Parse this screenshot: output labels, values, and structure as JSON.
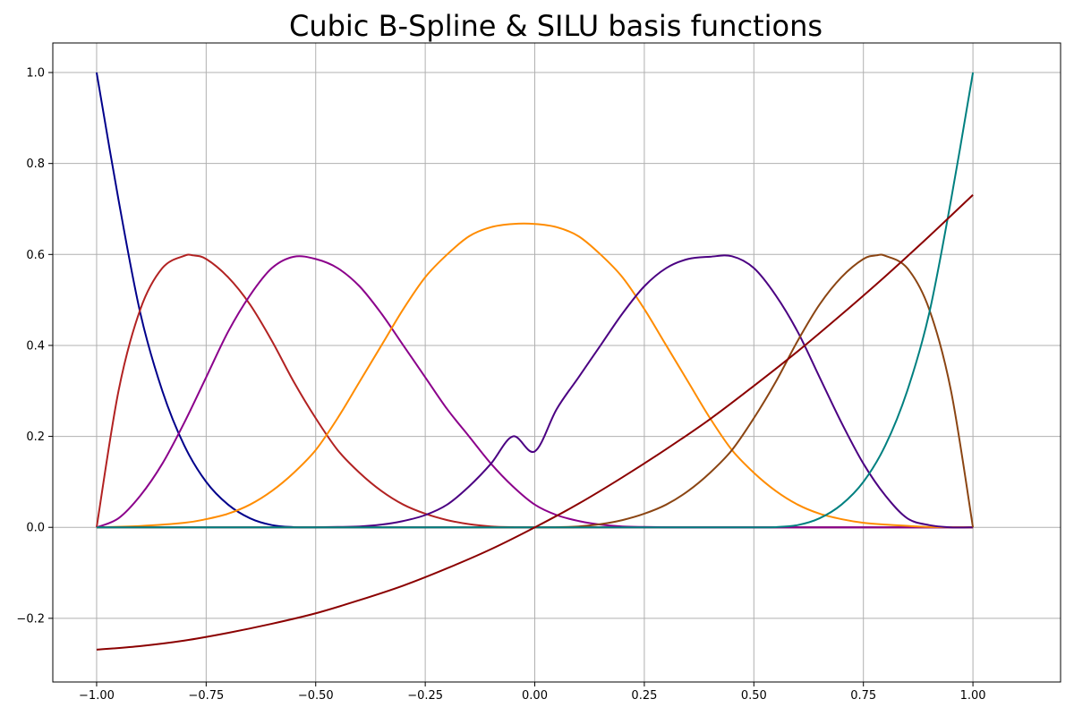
{
  "chart_data": {
    "type": "line",
    "title": "Cubic B-Spline & SILU basis functions",
    "xlabel": "",
    "ylabel": "",
    "xlim": [
      -1.1,
      1.2
    ],
    "ylim": [
      -0.34,
      1.065
    ],
    "grid": true,
    "x_ticks": [
      -1.0,
      -0.75,
      -0.5,
      -0.25,
      0.0,
      0.25,
      0.5,
      0.75,
      1.0
    ],
    "x_tick_labels": [
      "−1.00",
      "−0.75",
      "−0.50",
      "−0.25",
      "0.00",
      "0.25",
      "0.50",
      "0.75",
      "1.00"
    ],
    "y_ticks": [
      -0.2,
      0.0,
      0.2,
      0.4,
      0.6,
      0.8,
      1.0
    ],
    "y_tick_labels": [
      "−0.2",
      "0.0",
      "0.2",
      "0.4",
      "0.6",
      "0.8",
      "1.0"
    ],
    "series": [
      {
        "color": "#00008b",
        "x": [
          -1.0,
          -0.95,
          -0.9,
          -0.85,
          -0.8,
          -0.75,
          -0.7,
          -0.65,
          -0.6,
          -0.55,
          -0.5,
          -0.45,
          -0.4,
          1.0
        ],
        "y": [
          1.0,
          0.72,
          0.47,
          0.3,
          0.18,
          0.1,
          0.05,
          0.02,
          0.005,
          0.0005,
          0.0,
          0.0,
          0.0,
          0.0
        ]
      },
      {
        "color": "#b22222",
        "x": [
          -1.0,
          -0.95,
          -0.9,
          -0.85,
          -0.8,
          -0.78,
          -0.75,
          -0.7,
          -0.65,
          -0.6,
          -0.55,
          -0.5,
          -0.45,
          -0.4,
          -0.35,
          -0.3,
          -0.25,
          -0.2,
          -0.15,
          -0.1,
          -0.05,
          0.0,
          1.0
        ],
        "y": [
          0.0,
          0.3,
          0.48,
          0.57,
          0.597,
          0.598,
          0.59,
          0.55,
          0.49,
          0.41,
          0.32,
          0.24,
          0.17,
          0.12,
          0.08,
          0.05,
          0.03,
          0.016,
          0.007,
          0.002,
          0.0003,
          0.0,
          0.0
        ]
      },
      {
        "color": "#8b008b",
        "x": [
          -1.0,
          -0.95,
          -0.9,
          -0.85,
          -0.8,
          -0.75,
          -0.7,
          -0.65,
          -0.6,
          -0.55,
          -0.5,
          -0.45,
          -0.4,
          -0.35,
          -0.3,
          -0.25,
          -0.2,
          -0.15,
          -0.1,
          -0.05,
          0.0,
          0.05,
          0.1,
          0.15,
          0.2,
          0.25,
          0.3,
          0.35,
          0.4,
          0.45,
          0.5,
          0.55,
          1.0
        ],
        "y": [
          0.0,
          0.02,
          0.07,
          0.14,
          0.23,
          0.33,
          0.43,
          0.51,
          0.57,
          0.595,
          0.59,
          0.57,
          0.53,
          0.47,
          0.4,
          0.33,
          0.26,
          0.2,
          0.14,
          0.09,
          0.05,
          0.027,
          0.014,
          0.006,
          0.002,
          0.0008,
          0.0002,
          0.0,
          0.0,
          0.0,
          0.0,
          0.0,
          0.0
        ]
      },
      {
        "color": "#ff8c00",
        "x": [
          -1.0,
          -0.9,
          -0.8,
          -0.75,
          -0.7,
          -0.65,
          -0.6,
          -0.55,
          -0.5,
          -0.45,
          -0.4,
          -0.35,
          -0.3,
          -0.25,
          -0.2,
          -0.15,
          -0.1,
          -0.05,
          0.0,
          0.05,
          0.1,
          0.15,
          0.2,
          0.25,
          0.3,
          0.35,
          0.4,
          0.45,
          0.5,
          0.55,
          0.6,
          0.65,
          0.7,
          0.75,
          0.8,
          0.9,
          1.0
        ],
        "y": [
          0.0,
          0.003,
          0.01,
          0.018,
          0.03,
          0.05,
          0.08,
          0.12,
          0.17,
          0.24,
          0.32,
          0.4,
          0.48,
          0.55,
          0.6,
          0.64,
          0.66,
          0.667,
          0.667,
          0.66,
          0.64,
          0.6,
          0.55,
          0.48,
          0.4,
          0.32,
          0.24,
          0.17,
          0.12,
          0.08,
          0.05,
          0.03,
          0.018,
          0.01,
          0.006,
          0.001,
          0.0
        ]
      },
      {
        "color": "#4b0082",
        "x": [
          -1.0,
          -0.55,
          -0.5,
          -0.45,
          -0.4,
          -0.35,
          -0.3,
          -0.25,
          -0.2,
          -0.15,
          -0.1,
          -0.05,
          0.0,
          0.05,
          0.1,
          0.15,
          0.2,
          0.25,
          0.3,
          0.35,
          0.4,
          0.45,
          0.5,
          0.55,
          0.6,
          0.65,
          0.7,
          0.75,
          0.8,
          0.85,
          0.9,
          0.95,
          1.0
        ],
        "y": [
          0.0,
          0.0,
          0.0002,
          0.0008,
          0.002,
          0.006,
          0.014,
          0.027,
          0.05,
          0.09,
          0.14,
          0.2,
          0.167,
          0.26,
          0.33,
          0.4,
          0.47,
          0.53,
          0.57,
          0.59,
          0.595,
          0.596,
          0.57,
          0.51,
          0.43,
          0.33,
          0.23,
          0.14,
          0.07,
          0.02,
          0.005,
          0.0,
          0.0
        ]
      },
      {
        "color": "#8b4513",
        "x": [
          -1.0,
          0.0,
          0.05,
          0.1,
          0.15,
          0.2,
          0.25,
          0.3,
          0.35,
          0.4,
          0.45,
          0.5,
          0.55,
          0.6,
          0.65,
          0.7,
          0.75,
          0.78,
          0.8,
          0.85,
          0.9,
          0.95,
          1.0
        ],
        "y": [
          0.0,
          0.0,
          0.0003,
          0.002,
          0.007,
          0.016,
          0.03,
          0.05,
          0.08,
          0.12,
          0.17,
          0.24,
          0.32,
          0.41,
          0.49,
          0.55,
          0.59,
          0.598,
          0.597,
          0.57,
          0.48,
          0.3,
          0.0
        ]
      },
      {
        "color": "#008080",
        "x": [
          -1.0,
          0.4,
          0.45,
          0.5,
          0.55,
          0.6,
          0.65,
          0.7,
          0.75,
          0.8,
          0.85,
          0.9,
          0.95,
          1.0
        ],
        "y": [
          0.0,
          0.0,
          0.0,
          0.0,
          0.0005,
          0.005,
          0.02,
          0.05,
          0.1,
          0.18,
          0.3,
          0.47,
          0.72,
          1.0
        ]
      },
      {
        "color": "#8b0000",
        "x": [
          -1.0,
          -0.9,
          -0.8,
          -0.7,
          -0.6,
          -0.5,
          -0.4,
          -0.3,
          -0.2,
          -0.1,
          0.0,
          0.1,
          0.2,
          0.3,
          0.4,
          0.5,
          0.6,
          0.7,
          0.8,
          0.9,
          1.0
        ],
        "y": [
          -0.269,
          -0.261,
          -0.249,
          -0.232,
          -0.212,
          -0.189,
          -0.16,
          -0.128,
          -0.09,
          -0.048,
          0.0,
          0.052,
          0.11,
          0.172,
          0.238,
          0.311,
          0.387,
          0.468,
          0.552,
          0.64,
          0.731
        ]
      }
    ]
  }
}
